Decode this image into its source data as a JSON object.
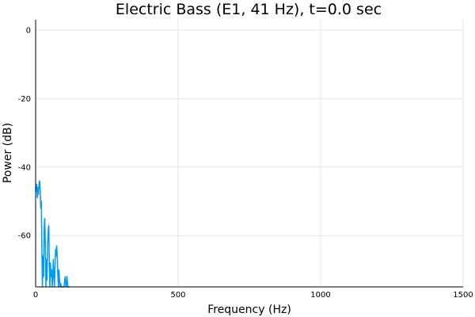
{
  "chart_data": {
    "type": "line",
    "title": "Electric Bass (E1, 41 Hz), t=0.0 sec",
    "xlabel": "Frequency (Hz)",
    "ylabel": "Power (dB)",
    "xlim": [
      0,
      1500
    ],
    "ylim": [
      -75,
      3
    ],
    "xticks": [
      0,
      500,
      1000,
      1500
    ],
    "xtick_labels": [
      "0",
      "500",
      "1000",
      "1500"
    ],
    "yticks": [
      0,
      -20,
      -40,
      -60
    ],
    "ytick_labels": [
      "0",
      "-20",
      "-40",
      "-60"
    ],
    "grid": true,
    "legend": "none",
    "series": [
      {
        "color": "#009af9",
        "x": [
          0,
          2,
          4,
          6,
          8,
          10,
          12,
          14,
          16,
          18,
          20,
          22,
          24,
          26,
          28,
          30,
          32,
          34,
          36,
          38,
          40,
          42,
          44,
          46,
          48,
          50,
          52,
          54,
          56,
          58,
          60,
          62,
          64,
          66,
          68,
          70,
          72,
          74,
          76,
          78,
          80,
          82,
          84,
          86,
          88,
          90,
          92,
          94,
          96,
          98,
          100,
          102,
          104,
          106,
          108,
          110,
          112,
          114,
          116,
          118,
          120
        ],
        "y": [
          -46,
          -47,
          -45,
          -49,
          -46,
          -48,
          -45,
          -44,
          -47,
          -52,
          -50,
          -64,
          -75,
          -66,
          -72,
          -58,
          -55,
          -62,
          -75,
          -67,
          -73,
          -63,
          -59,
          -57,
          -69,
          -75,
          -68,
          -72,
          -70,
          -75,
          -73,
          -67,
          -71,
          -75,
          -69,
          -64,
          -66,
          -63,
          -67,
          -72,
          -75,
          -70,
          -73,
          -75,
          -74,
          -75,
          -75,
          -75,
          -75,
          -75,
          -75,
          -73,
          -72,
          -75,
          -75,
          -72,
          -74,
          -75,
          -75,
          -75,
          -75
        ]
      }
    ]
  }
}
